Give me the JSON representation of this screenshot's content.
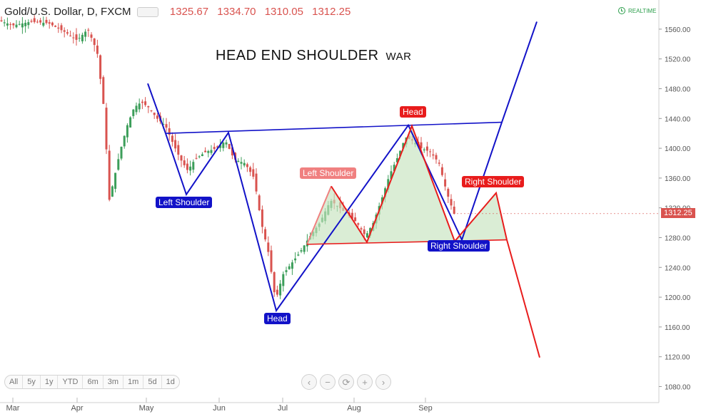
{
  "header": {
    "symbol": "Gold/U.S. Dollar, D, FXCM",
    "open": "1325.67",
    "high": "1334.70",
    "low": "1310.05",
    "close": "1312.25",
    "realtime": "REALTIME"
  },
  "title": "HEAD END SHOULDER",
  "subtitle": "WAR",
  "chart_data": {
    "type": "candlestick",
    "x_axis_labels": [
      "Mar",
      "Apr",
      "May",
      "Jun",
      "Jul",
      "Aug",
      "Sep"
    ],
    "y_ticks": [
      "1560.00",
      "1520.00",
      "1480.00",
      "1440.00",
      "1400.00",
      "1360.00",
      "1320.00",
      "1280.00",
      "1240.00",
      "1200.00",
      "1160.00",
      "1120.00",
      "1080.00"
    ],
    "ylim": [
      1068,
      1580
    ],
    "last_price": "1312.25",
    "price_series": [
      {
        "x": 0,
        "v": 1572
      },
      {
        "x": 20,
        "v": 1565
      },
      {
        "x": 45,
        "v": 1570
      },
      {
        "x": 70,
        "v": 1568
      },
      {
        "x": 95,
        "v": 1555
      },
      {
        "x": 110,
        "v": 1545
      },
      {
        "x": 125,
        "v": 1560
      },
      {
        "x": 138,
        "v": 1530
      },
      {
        "x": 148,
        "v": 1450
      },
      {
        "x": 155,
        "v": 1330
      },
      {
        "x": 162,
        "v": 1360
      },
      {
        "x": 170,
        "v": 1395
      },
      {
        "x": 180,
        "v": 1430
      },
      {
        "x": 190,
        "v": 1455
      },
      {
        "x": 200,
        "v": 1462
      },
      {
        "x": 210,
        "v": 1455
      },
      {
        "x": 222,
        "v": 1440
      },
      {
        "x": 234,
        "v": 1430
      },
      {
        "x": 245,
        "v": 1405
      },
      {
        "x": 255,
        "v": 1385
      },
      {
        "x": 265,
        "v": 1370
      },
      {
        "x": 275,
        "v": 1385
      },
      {
        "x": 290,
        "v": 1395
      },
      {
        "x": 305,
        "v": 1400
      },
      {
        "x": 318,
        "v": 1410
      },
      {
        "x": 330,
        "v": 1385
      },
      {
        "x": 345,
        "v": 1380
      },
      {
        "x": 358,
        "v": 1360
      },
      {
        "x": 368,
        "v": 1300
      },
      {
        "x": 378,
        "v": 1260
      },
      {
        "x": 388,
        "v": 1195
      },
      {
        "x": 398,
        "v": 1230
      },
      {
        "x": 410,
        "v": 1245
      },
      {
        "x": 422,
        "v": 1260
      },
      {
        "x": 435,
        "v": 1280
      },
      {
        "x": 450,
        "v": 1300
      },
      {
        "x": 465,
        "v": 1330
      },
      {
        "x": 478,
        "v": 1320
      },
      {
        "x": 490,
        "v": 1310
      },
      {
        "x": 502,
        "v": 1300
      },
      {
        "x": 514,
        "v": 1282
      },
      {
        "x": 525,
        "v": 1300
      },
      {
        "x": 536,
        "v": 1330
      },
      {
        "x": 548,
        "v": 1365
      },
      {
        "x": 560,
        "v": 1390
      },
      {
        "x": 570,
        "v": 1415
      },
      {
        "x": 580,
        "v": 1410
      },
      {
        "x": 592,
        "v": 1400
      },
      {
        "x": 605,
        "v": 1395
      },
      {
        "x": 617,
        "v": 1380
      },
      {
        "x": 628,
        "v": 1340
      },
      {
        "x": 638,
        "v": 1312
      }
    ],
    "annotations": [
      {
        "text": "Left Shoulder",
        "color": "#1212c8"
      },
      {
        "text": "Head",
        "color": "#1212c8"
      },
      {
        "text": "Right Shoulder",
        "color": "#1212c8"
      },
      {
        "text": "Left Shoulder",
        "color": "#f08080"
      },
      {
        "text": "Head",
        "color": "#e81c1c"
      },
      {
        "text": "Right Shoulder",
        "color": "#e81c1c"
      }
    ],
    "blue_pattern": [
      {
        "x": 207,
        "v": 1487
      },
      {
        "x": 232,
        "v": 1420
      },
      {
        "x": 261,
        "v": 1338
      },
      {
        "x": 320,
        "v": 1421
      },
      {
        "x": 387,
        "v": 1182
      },
      {
        "x": 572,
        "v": 1431
      },
      {
        "x": 647,
        "v": 1277
      },
      {
        "x": 703,
        "v": 1435
      },
      {
        "x": 752,
        "v": 1570
      }
    ],
    "blue_neckline": [
      {
        "x": 232,
        "v": 1420
      },
      {
        "x": 703,
        "v": 1435
      }
    ],
    "red_pattern": [
      {
        "x": 430,
        "v": 1271
      },
      {
        "x": 464,
        "v": 1349
      },
      {
        "x": 514,
        "v": 1274
      },
      {
        "x": 577,
        "v": 1430
      },
      {
        "x": 637,
        "v": 1275
      },
      {
        "x": 695,
        "v": 1340
      },
      {
        "x": 710,
        "v": 1277
      },
      {
        "x": 756,
        "v": 1119
      }
    ],
    "red_neckline": [
      {
        "x": 430,
        "v": 1271
      },
      {
        "x": 710,
        "v": 1277
      }
    ],
    "colors": {
      "up": "#3c9e5a",
      "down": "#d9534f",
      "blue": "#1212c8",
      "red": "#e81c1c",
      "fill": "#c6e3bf"
    }
  },
  "ranges": [
    "All",
    "5y",
    "1y",
    "YTD",
    "6m",
    "3m",
    "1m",
    "5d",
    "1d"
  ],
  "zoom": [
    "‹",
    "−",
    "⟳",
    "+",
    "›"
  ]
}
